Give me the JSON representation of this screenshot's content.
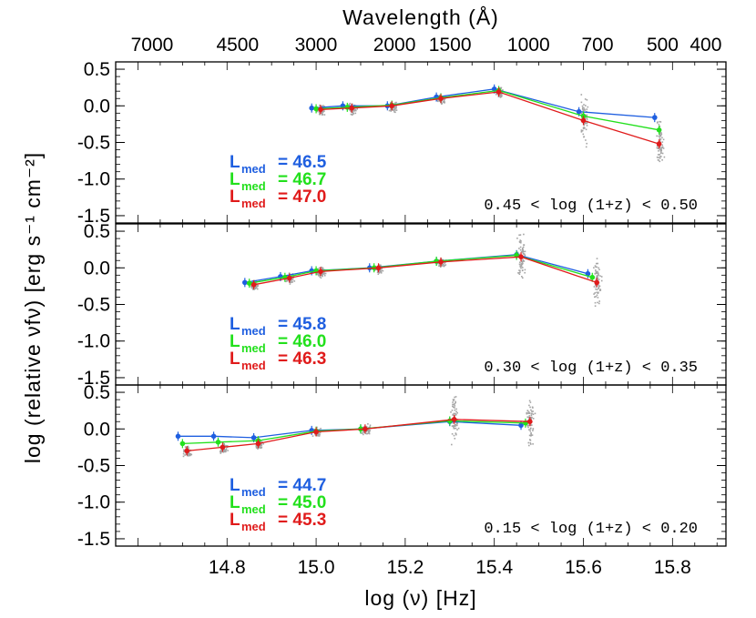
{
  "chart_data": {
    "type": "line",
    "x_axis": {
      "label": "log (ν) [Hz]",
      "range": [
        14.55,
        15.92
      ],
      "ticks": [
        "14.8",
        "15.0",
        "15.2",
        "15.4",
        "15.6",
        "15.8"
      ]
    },
    "top_axis": {
      "label": "Wavelength (Å)",
      "ticks": [
        "7000",
        "4500",
        "3000",
        "2000",
        "1500",
        "1000",
        "700",
        "500",
        "400"
      ]
    },
    "y_axis": {
      "label": "log (relative νfν) [erg s⁻¹ cm⁻²]",
      "range": [
        -1.6,
        0.6
      ],
      "ticks": [
        "0.5",
        "0.0",
        "-0.5",
        "-1.0",
        "-1.5"
      ]
    },
    "colors": {
      "blue": "#1f5fe0",
      "green": "#22e01c",
      "red": "#e01b1b",
      "scatter": "#a5a5a5"
    },
    "panels": [
      {
        "zrange": "0.45 < log (1+z) < 0.50",
        "legend": [
          {
            "label": "L",
            "sub": "med",
            "value": "= 46.5",
            "color": "blue"
          },
          {
            "label": "L",
            "sub": "med",
            "value": "= 46.7",
            "color": "green"
          },
          {
            "label": "L",
            "sub": "med",
            "value": "= 47.0",
            "color": "red"
          }
        ],
        "series": [
          {
            "name": "Lmed = 46.5",
            "color": "blue",
            "x": [
              14.99,
              15.06,
              15.16,
              15.27,
              15.4,
              15.59,
              15.76
            ],
            "y": [
              -0.03,
              0.0,
              0.0,
              0.12,
              0.23,
              -0.08,
              -0.16
            ]
          },
          {
            "name": "Lmed = 46.7",
            "color": "green",
            "x": [
              15.0,
              15.07,
              15.17,
              15.28,
              15.41,
              15.6,
              15.77
            ],
            "y": [
              -0.04,
              -0.02,
              0.01,
              0.11,
              0.21,
              -0.14,
              -0.33
            ]
          },
          {
            "name": "Lmed = 47.0",
            "color": "red",
            "x": [
              15.01,
              15.08,
              15.17,
              15.28,
              15.41,
              15.6,
              15.77
            ],
            "y": [
              -0.05,
              -0.03,
              0.0,
              0.1,
              0.19,
              -0.2,
              -0.52
            ]
          }
        ]
      },
      {
        "zrange": "0.30 < log (1+z) < 0.35",
        "legend": [
          {
            "label": "L",
            "sub": "med",
            "value": "= 45.8",
            "color": "blue"
          },
          {
            "label": "L",
            "sub": "med",
            "value": "= 46.0",
            "color": "green"
          },
          {
            "label": "L",
            "sub": "med",
            "value": "= 46.3",
            "color": "red"
          }
        ],
        "series": [
          {
            "name": "Lmed = 45.8",
            "color": "blue",
            "x": [
              14.84,
              14.92,
              14.99,
              15.12,
              15.27,
              15.45,
              15.61
            ],
            "y": [
              -0.2,
              -0.12,
              -0.04,
              0.0,
              0.09,
              0.18,
              -0.08
            ]
          },
          {
            "name": "Lmed = 46.0",
            "color": "green",
            "x": [
              14.85,
              14.93,
              15.0,
              15.13,
              15.27,
              15.45,
              15.62
            ],
            "y": [
              -0.21,
              -0.13,
              -0.04,
              0.0,
              0.09,
              0.17,
              -0.13
            ]
          },
          {
            "name": "Lmed = 46.3",
            "color": "red",
            "x": [
              14.86,
              14.94,
              15.01,
              15.14,
              15.28,
              15.46,
              15.63
            ],
            "y": [
              -0.23,
              -0.14,
              -0.05,
              0.0,
              0.08,
              0.15,
              -0.2
            ]
          }
        ]
      },
      {
        "zrange": "0.15 < log (1+z) < 0.20",
        "legend": [
          {
            "label": "L",
            "sub": "med",
            "value": "= 44.7",
            "color": "blue"
          },
          {
            "label": "L",
            "sub": "med",
            "value": "= 45.0",
            "color": "green"
          },
          {
            "label": "L",
            "sub": "med",
            "value": "= 45.3",
            "color": "red"
          }
        ],
        "series": [
          {
            "name": "Lmed = 44.7",
            "color": "blue",
            "x": [
              14.69,
              14.77,
              14.86,
              14.99,
              15.1,
              15.3,
              15.46
            ],
            "y": [
              -0.1,
              -0.1,
              -0.12,
              -0.02,
              0.0,
              0.1,
              0.05
            ]
          },
          {
            "name": "Lmed = 45.0",
            "color": "green",
            "x": [
              14.7,
              14.78,
              14.87,
              15.0,
              15.1,
              15.3,
              15.47
            ],
            "y": [
              -0.2,
              -0.18,
              -0.16,
              -0.03,
              0.0,
              0.11,
              0.08
            ]
          },
          {
            "name": "Lmed = 45.3",
            "color": "red",
            "x": [
              14.71,
              14.79,
              14.87,
              15.0,
              15.11,
              15.31,
              15.48
            ],
            "y": [
              -0.3,
              -0.25,
              -0.2,
              -0.04,
              0.0,
              0.13,
              0.1
            ]
          }
        ]
      }
    ]
  }
}
